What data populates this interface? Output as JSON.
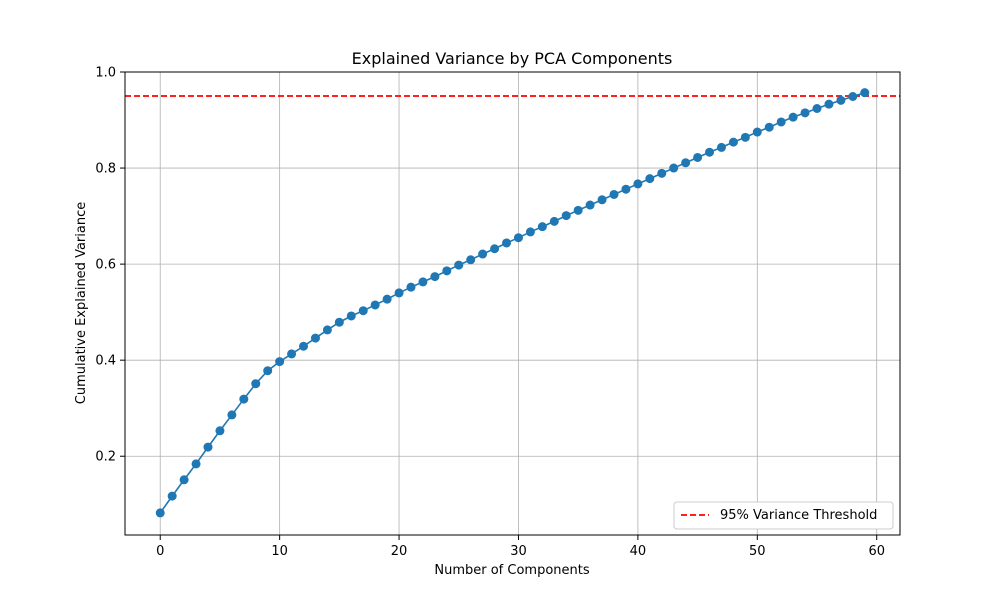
{
  "chart_data": {
    "type": "line",
    "title": "Explained Variance by PCA Components",
    "xlabel": "Number of Components",
    "ylabel": "Cumulative Explained Variance",
    "xlim": [
      -2.95,
      61.95
    ],
    "ylim": [
      0.036,
      1.0
    ],
    "xticks": [
      0,
      10,
      20,
      30,
      40,
      50,
      60
    ],
    "yticks": [
      0.2,
      0.4,
      0.6,
      0.8,
      1.0
    ],
    "xtick_labels": [
      "0",
      "10",
      "20",
      "30",
      "40",
      "50",
      "60"
    ],
    "ytick_labels": [
      "0.2",
      "0.4",
      "0.6",
      "0.8",
      "1.0"
    ],
    "grid": true,
    "legend_position": "lower-right",
    "series": [
      {
        "color": "#1f77b4",
        "marker": "circle",
        "x": [
          0,
          1,
          2,
          3,
          4,
          5,
          6,
          7,
          8,
          9,
          10,
          11,
          12,
          13,
          14,
          15,
          16,
          17,
          18,
          19,
          20,
          21,
          22,
          23,
          24,
          25,
          26,
          27,
          28,
          29,
          30,
          31,
          32,
          33,
          34,
          35,
          36,
          37,
          38,
          39,
          40,
          41,
          42,
          43,
          44,
          45,
          46,
          47,
          48,
          49,
          50,
          51,
          52,
          53,
          54,
          55,
          56,
          57,
          58,
          59
        ],
        "values": [
          0.082,
          0.117,
          0.151,
          0.184,
          0.219,
          0.253,
          0.286,
          0.319,
          0.351,
          0.378,
          0.397,
          0.413,
          0.429,
          0.446,
          0.463,
          0.479,
          0.492,
          0.503,
          0.515,
          0.527,
          0.54,
          0.552,
          0.563,
          0.574,
          0.586,
          0.598,
          0.609,
          0.621,
          0.632,
          0.644,
          0.655,
          0.667,
          0.678,
          0.689,
          0.701,
          0.712,
          0.723,
          0.734,
          0.745,
          0.756,
          0.767,
          0.778,
          0.789,
          0.8,
          0.811,
          0.822,
          0.833,
          0.843,
          0.854,
          0.864,
          0.875,
          0.885,
          0.896,
          0.906,
          0.915,
          0.924,
          0.933,
          0.941,
          0.949,
          0.957
        ]
      }
    ],
    "reference_lines": [
      {
        "name": "95% Variance Threshold",
        "y": 0.95,
        "color": "#ff0000",
        "style": "dashed"
      }
    ],
    "legend": [
      {
        "label": "95% Variance Threshold",
        "color": "#ff0000",
        "style": "dashed"
      }
    ]
  }
}
